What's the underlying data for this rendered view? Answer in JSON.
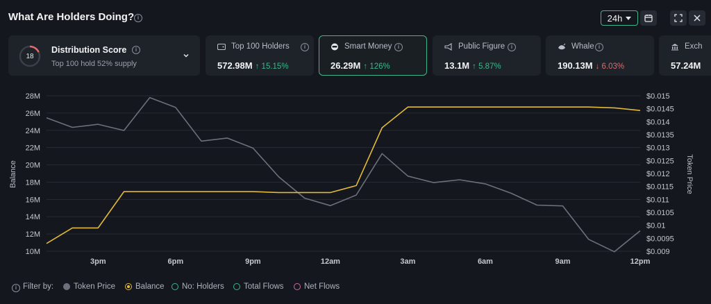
{
  "header": {
    "title": "What Are Holders Doing?",
    "timeframe": "24h"
  },
  "distribution": {
    "score": "18",
    "score_fraction": 0.18,
    "title": "Distribution Score",
    "subtitle": "Top 100 hold 52% supply"
  },
  "cards": [
    {
      "label": "Top 100 Holders",
      "value": "572.98M",
      "change": "15.15%",
      "direction": "up",
      "icon": "wallet-icon"
    },
    {
      "label": "Smart Money",
      "value": "26.29M",
      "change": "126%",
      "direction": "up",
      "icon": "smart-money-icon",
      "active": true
    },
    {
      "label": "Public Figure",
      "value": "13.1M",
      "change": "5.87%",
      "direction": "up",
      "icon": "public-figure-icon"
    },
    {
      "label": "Whale",
      "value": "190.13M",
      "change": "6.03%",
      "direction": "down",
      "icon": "whale-icon"
    },
    {
      "label": "Exch",
      "value": "57.24M",
      "change": "",
      "direction": "",
      "icon": "exchange-icon"
    }
  ],
  "filters": {
    "label": "Filter by:",
    "items": [
      {
        "label": "Token Price",
        "style": "solid",
        "color": "#6b717c"
      },
      {
        "label": "Balance",
        "style": "ring-fill",
        "color": "#e2b93b"
      },
      {
        "label": "No: Holders",
        "style": "ring",
        "color": "#3fb68b"
      },
      {
        "label": "Total Flows",
        "style": "ring",
        "color": "#3fb68b"
      },
      {
        "label": "Net Flows",
        "style": "ring",
        "color": "#d16ba5"
      }
    ]
  },
  "colors": {
    "accent": "#3fb68b",
    "balance_line": "#e2b93b",
    "price_line": "#6b717c",
    "up": "#3fb68b",
    "down": "#e26a6a"
  },
  "chart_data": {
    "type": "line",
    "ylabel": "Balance",
    "y2label": "Token Price",
    "x_tick_labels": [
      "3pm",
      "6pm",
      "9pm",
      "12am",
      "3am",
      "6am",
      "9am",
      "12pm"
    ],
    "x_tick_hours": [
      2,
      5,
      8,
      11,
      14,
      17,
      20,
      23
    ],
    "ylim": [
      10,
      28
    ],
    "y_ticks": [
      "10M",
      "12M",
      "14M",
      "16M",
      "18M",
      "20M",
      "22M",
      "24M",
      "26M",
      "28M"
    ],
    "y2lim": [
      0.009,
      0.015
    ],
    "y2_ticks": [
      "$0.009",
      "$0.0095",
      "$0.01",
      "$0.0105",
      "$0.011",
      "$0.0115",
      "$0.012",
      "$0.0125",
      "$0.013",
      "$0.0135",
      "$0.014",
      "$0.0145",
      "$0.015"
    ],
    "grid": true,
    "series": [
      {
        "name": "Balance",
        "axis": "left",
        "x": [
          0,
          1,
          2,
          3,
          4,
          5,
          6,
          7,
          8,
          9,
          10,
          11,
          12,
          13,
          14,
          15,
          16,
          17,
          18,
          19,
          20,
          21,
          22,
          23
        ],
        "values": [
          10.9,
          12.7,
          12.7,
          16.9,
          16.9,
          16.9,
          16.9,
          16.9,
          16.9,
          16.8,
          16.8,
          16.8,
          17.6,
          24.3,
          26.7,
          26.7,
          26.7,
          26.7,
          26.7,
          26.7,
          26.7,
          26.7,
          26.6,
          26.3
        ]
      },
      {
        "name": "Token Price",
        "axis": "right",
        "x": [
          0,
          1,
          2,
          3,
          4,
          5,
          6,
          7,
          8,
          9,
          10,
          11,
          12,
          13,
          14,
          15,
          16,
          17,
          18,
          19,
          20,
          21,
          22,
          23
        ],
        "values": [
          0.01415,
          0.01378,
          0.0139,
          0.01366,
          0.01493,
          0.01455,
          0.01325,
          0.01337,
          0.01298,
          0.01187,
          0.01105,
          0.01076,
          0.01117,
          0.01277,
          0.0119,
          0.01165,
          0.01176,
          0.0116,
          0.01124,
          0.01078,
          0.01075,
          0.00946,
          0.00898,
          0.00979
        ]
      }
    ]
  }
}
